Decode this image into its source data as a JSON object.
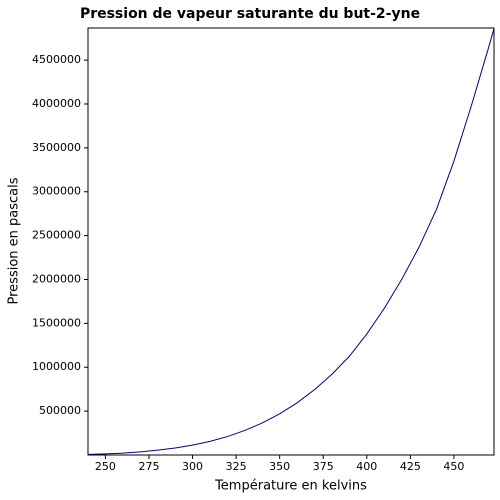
{
  "chart_data": {
    "type": "line",
    "title": "Pression de vapeur saturante du but-2-yne",
    "x_label": "Température en kelvins",
    "y_label": "Pression en pascals",
    "x": [
      240,
      250,
      260,
      270,
      280,
      290,
      300,
      310,
      320,
      330,
      340,
      350,
      360,
      370,
      380,
      390,
      400,
      410,
      420,
      430,
      440,
      450,
      460,
      470,
      473
    ],
    "series": [
      {
        "name": "Pression",
        "color": "#00008b",
        "values": [
          7000,
          13000,
          22000,
          36000,
          55000,
          80000,
          113000,
          155000,
          210000,
          280000,
          365000,
          470000,
          595000,
          745000,
          920000,
          1125000,
          1380000,
          1670000,
          2000000,
          2370000,
          2800000,
          3350000,
          3980000,
          4650000,
          4860000
        ]
      }
    ],
    "xlim": [
      240,
      473
    ],
    "ylim": [
      0,
      4866000
    ],
    "xticks": [
      250,
      275,
      300,
      325,
      350,
      375,
      400,
      425,
      450
    ],
    "yticks": [
      500000,
      1000000,
      1500000,
      2000000,
      2500000,
      3000000,
      3500000,
      4000000,
      4500000
    ]
  }
}
